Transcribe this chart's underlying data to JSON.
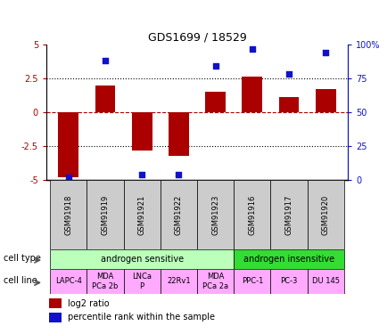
{
  "title": "GDS1699 / 18529",
  "samples": [
    "GSM91918",
    "GSM91919",
    "GSM91921",
    "GSM91922",
    "GSM91923",
    "GSM91916",
    "GSM91917",
    "GSM91920"
  ],
  "log2_ratio": [
    -4.8,
    2.0,
    -2.8,
    -3.2,
    1.5,
    2.6,
    1.1,
    1.7
  ],
  "percentile_rank": [
    2,
    88,
    4,
    4,
    84,
    97,
    78,
    94
  ],
  "ylim": [
    -5,
    5
  ],
  "y2lim": [
    0,
    100
  ],
  "yticks": [
    -5,
    -2.5,
    0,
    2.5,
    5
  ],
  "y2ticks": [
    0,
    25,
    50,
    75,
    100
  ],
  "hlines_dotted": [
    -2.5,
    2.5
  ],
  "hline_dashed": 0,
  "bar_color": "#aa0000",
  "dot_color": "#1111cc",
  "cell_type_sensitive_color": "#bbffbb",
  "cell_type_insensitive_color": "#33dd33",
  "cell_line_color": "#ffaaff",
  "sample_box_color": "#cccccc",
  "bar_width": 0.55,
  "legend_red": "log2 ratio",
  "legend_blue": "percentile rank within the sample",
  "cell_type_sensitive_label": "androgen sensitive",
  "cell_type_insensitive_label": "androgen insensitive",
  "cell_line_labels": [
    "LAPC-4",
    "MDA\nPCa 2b",
    "LNCa\nP",
    "22Rv1",
    "MDA\nPCa 2a",
    "PPC-1",
    "PC-3",
    "DU 145"
  ],
  "cell_type_arrow_label": "cell type",
  "cell_line_arrow_label": "cell line",
  "n_sensitive": 5,
  "n_insensitive": 3
}
